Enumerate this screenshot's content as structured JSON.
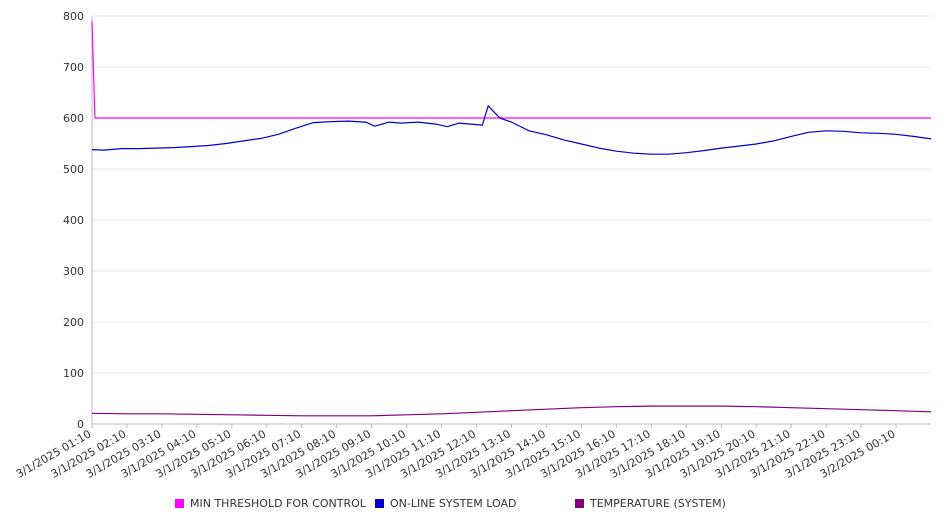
{
  "chart_data": {
    "type": "line",
    "title": "",
    "xlabel": "",
    "ylabel": "",
    "ylim": [
      0,
      800
    ],
    "yticks": [
      0,
      100,
      200,
      300,
      400,
      500,
      600,
      700,
      800
    ],
    "grid": true,
    "legend_position": "bottom",
    "x_range": [
      "3/1/2025 01:10",
      "3/2/2025 01:10"
    ],
    "x_tick_labels": [
      "3/1/2025 01:10",
      "3/1/2025 02:10",
      "3/1/2025 03:10",
      "3/1/2025 04:10",
      "3/1/2025 05:10",
      "3/1/2025 06:10",
      "3/1/2025 07:10",
      "3/1/2025 08:10",
      "3/1/2025 09:10",
      "3/1/2025 10:10",
      "3/1/2025 11:10",
      "3/1/2025 12:10",
      "3/1/2025 13:10",
      "3/1/2025 14:10",
      "3/1/2025 15:10",
      "3/1/2025 16:10",
      "3/1/2025 17:10",
      "3/1/2025 18:10",
      "3/1/2025 19:10",
      "3/1/2025 20:10",
      "3/1/2025 21:10",
      "3/1/2025 22:10",
      "3/1/2025 23:10",
      "3/2/2025 00:10"
    ],
    "series": [
      {
        "name": "MIN THRESHOLD FOR CONTROL",
        "color": "#ff00ff",
        "points": [
          [
            "3/1/2025 01:10",
            790
          ],
          [
            "3/1/2025 01:15",
            600
          ],
          [
            "3/2/2025 01:10",
            600
          ]
        ]
      },
      {
        "name": "ON-LINE SYSTEM LOAD",
        "color": "#0000cc",
        "points": [
          [
            "3/1/2025 01:10",
            538
          ],
          [
            "3/1/2025 01:30",
            537
          ],
          [
            "3/1/2025 02:00",
            540
          ],
          [
            "3/1/2025 02:30",
            540
          ],
          [
            "3/1/2025 03:00",
            541
          ],
          [
            "3/1/2025 03:30",
            542
          ],
          [
            "3/1/2025 04:00",
            544
          ],
          [
            "3/1/2025 04:30",
            546
          ],
          [
            "3/1/2025 05:00",
            550
          ],
          [
            "3/1/2025 05:30",
            555
          ],
          [
            "3/1/2025 06:00",
            560
          ],
          [
            "3/1/2025 06:30",
            568
          ],
          [
            "3/1/2025 07:00",
            580
          ],
          [
            "3/1/2025 07:30",
            591
          ],
          [
            "3/1/2025 08:00",
            593
          ],
          [
            "3/1/2025 08:30",
            594
          ],
          [
            "3/1/2025 09:00",
            592
          ],
          [
            "3/1/2025 09:15",
            584
          ],
          [
            "3/1/2025 09:40",
            592
          ],
          [
            "3/1/2025 10:00",
            590
          ],
          [
            "3/1/2025 10:30",
            592
          ],
          [
            "3/1/2025 11:00",
            588
          ],
          [
            "3/1/2025 11:20",
            583
          ],
          [
            "3/1/2025 11:40",
            590
          ],
          [
            "3/1/2025 12:00",
            588
          ],
          [
            "3/1/2025 12:20",
            586
          ],
          [
            "3/1/2025 12:30",
            624
          ],
          [
            "3/1/2025 12:50",
            600
          ],
          [
            "3/1/2025 13:10",
            592
          ],
          [
            "3/1/2025 13:40",
            575
          ],
          [
            "3/1/2025 14:10",
            567
          ],
          [
            "3/1/2025 14:40",
            557
          ],
          [
            "3/1/2025 15:10",
            549
          ],
          [
            "3/1/2025 15:40",
            541
          ],
          [
            "3/1/2025 16:10",
            535
          ],
          [
            "3/1/2025 16:40",
            531
          ],
          [
            "3/1/2025 17:10",
            529
          ],
          [
            "3/1/2025 17:40",
            529
          ],
          [
            "3/1/2025 18:10",
            532
          ],
          [
            "3/1/2025 18:40",
            536
          ],
          [
            "3/1/2025 19:10",
            541
          ],
          [
            "3/1/2025 19:40",
            545
          ],
          [
            "3/1/2025 20:10",
            549
          ],
          [
            "3/1/2025 20:40",
            555
          ],
          [
            "3/1/2025 21:10",
            564
          ],
          [
            "3/1/2025 21:40",
            572
          ],
          [
            "3/1/2025 22:10",
            575
          ],
          [
            "3/1/2025 22:40",
            574
          ],
          [
            "3/1/2025 23:10",
            571
          ],
          [
            "3/1/2025 23:40",
            570
          ],
          [
            "3/2/2025 00:10",
            568
          ],
          [
            "3/2/2025 00:40",
            564
          ],
          [
            "3/2/2025 01:10",
            559
          ]
        ]
      },
      {
        "name": "TEMPERATURE (SYSTEM)",
        "color": "#800080",
        "points": [
          [
            "3/1/2025 01:10",
            21
          ],
          [
            "3/1/2025 02:10",
            20
          ],
          [
            "3/1/2025 03:10",
            20
          ],
          [
            "3/1/2025 04:10",
            19
          ],
          [
            "3/1/2025 05:10",
            18
          ],
          [
            "3/1/2025 06:10",
            17
          ],
          [
            "3/1/2025 07:10",
            16
          ],
          [
            "3/1/2025 08:10",
            16
          ],
          [
            "3/1/2025 09:10",
            16
          ],
          [
            "3/1/2025 10:10",
            18
          ],
          [
            "3/1/2025 11:10",
            20
          ],
          [
            "3/1/2025 12:10",
            23
          ],
          [
            "3/1/2025 13:10",
            26
          ],
          [
            "3/1/2025 14:10",
            29
          ],
          [
            "3/1/2025 15:10",
            32
          ],
          [
            "3/1/2025 16:10",
            34
          ],
          [
            "3/1/2025 17:10",
            35
          ],
          [
            "3/1/2025 18:10",
            35
          ],
          [
            "3/1/2025 19:10",
            35
          ],
          [
            "3/1/2025 20:10",
            34
          ],
          [
            "3/1/2025 21:10",
            32
          ],
          [
            "3/1/2025 22:10",
            30
          ],
          [
            "3/1/2025 23:10",
            28
          ],
          [
            "3/2/2025 00:10",
            26
          ],
          [
            "3/2/2025 01:10",
            24
          ]
        ]
      }
    ]
  }
}
